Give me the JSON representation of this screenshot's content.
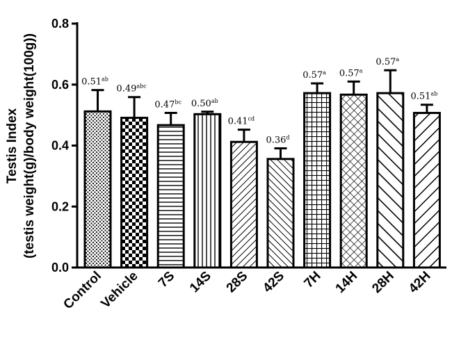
{
  "chart_data": {
    "type": "bar",
    "title": "",
    "xlabel": "",
    "ylabel_line1": "Testis Index",
    "ylabel_line2": "(testis weight(g)/body weight(100g))",
    "ylim": [
      0,
      0.8
    ],
    "yticks": [
      "0.0",
      "0.2",
      "0.4",
      "0.6",
      "0.8"
    ],
    "ytick_values": [
      0,
      0.2,
      0.4,
      0.6,
      0.8
    ],
    "categories": [
      "Control",
      "Vehicle",
      "7S",
      "14S",
      "28S",
      "42S",
      "7H",
      "14H",
      "28H",
      "42H"
    ],
    "values": [
      0.51,
      0.49,
      0.47,
      0.5,
      0.41,
      0.36,
      0.57,
      0.57,
      0.57,
      0.51
    ],
    "plotted_values": [
      0.512,
      0.491,
      0.467,
      0.503,
      0.412,
      0.356,
      0.572,
      0.567,
      0.572,
      0.507
    ],
    "errors": [
      0.07,
      0.068,
      0.04,
      0.008,
      0.04,
      0.035,
      0.032,
      0.043,
      0.075,
      0.027
    ],
    "value_labels": [
      "0.51",
      "0.49",
      "0.47",
      "0.50",
      "0.41",
      "0.36",
      "0.57",
      "0.57",
      "0.57",
      "0.51"
    ],
    "significance": [
      "ab",
      "abc",
      "bc",
      "ab",
      "cd",
      "d",
      "a",
      "a",
      "a",
      "ab"
    ],
    "patterns": [
      "dots",
      "checker",
      "hlines",
      "vlines",
      "diag-fwd",
      "diag-back",
      "grid",
      "crosshatch",
      "wide-back",
      "wide-fwd"
    ]
  }
}
